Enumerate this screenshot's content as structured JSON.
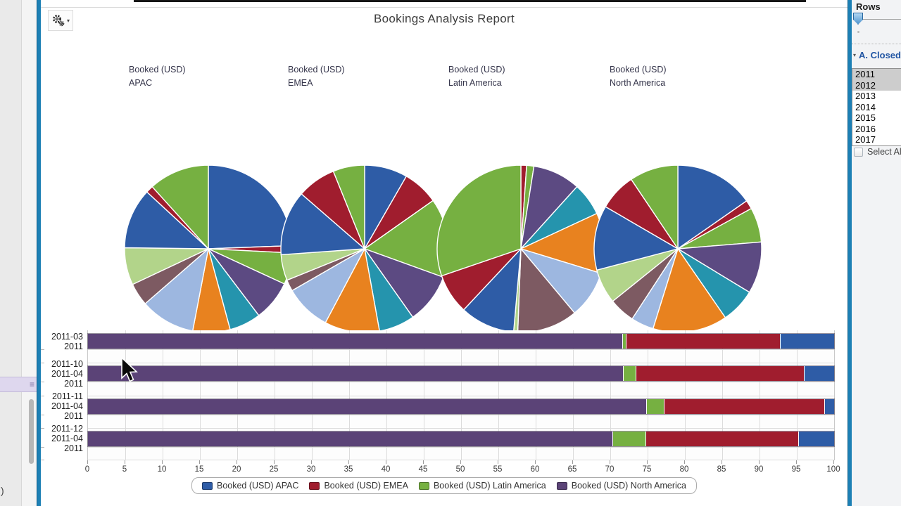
{
  "title": "Bookings Analysis Report",
  "toolbar": {
    "caret": "▾"
  },
  "left_panel": {
    "menu_icon": "≡",
    "overflow_text": ")"
  },
  "column_headers": [
    {
      "metric": "Booked (USD)",
      "region": "APAC"
    },
    {
      "metric": "Booked (USD)",
      "region": "EMEA"
    },
    {
      "metric": "Booked (USD)",
      "region": "Latin America"
    },
    {
      "metric": "Booked (USD)",
      "region": "North America"
    }
  ],
  "right_panel": {
    "rows_label": "Rows",
    "section": {
      "expander": "▾",
      "header": "A. Closed"
    },
    "years": [
      "2011",
      "2012",
      "2013",
      "2014",
      "2015",
      "2016",
      "2017"
    ],
    "selected_years": [
      "2011",
      "2012"
    ],
    "select_all_label": "Select All"
  },
  "legend": {
    "items": [
      {
        "label": "Booked (USD) APAC",
        "color": "#2E5CA6"
      },
      {
        "label": "Booked (USD) EMEA",
        "color": "#A01D2E"
      },
      {
        "label": "Booked (USD) Latin America",
        "color": "#76B041"
      },
      {
        "label": "Booked (USD) North America",
        "color": "#5B4377"
      }
    ]
  },
  "chart_data": [
    {
      "type": "pie",
      "title": "Booked (USD) APAC",
      "value_unit": "percent_of_pie",
      "slices": [
        {
          "color": "#2E5CA6",
          "value": 24.4
        },
        {
          "color": "#A01D2E",
          "value": 1.4
        },
        {
          "color": "#76B041",
          "value": 6.1
        },
        {
          "color": "#5C4A82",
          "value": 7.8
        },
        {
          "color": "#2594AD",
          "value": 6.1
        },
        {
          "color": "#E8821F",
          "value": 7.2
        },
        {
          "color": "#9DB7E0",
          "value": 10.6
        },
        {
          "color": "#7D5A62",
          "value": 4.4
        },
        {
          "color": "#B2D48A",
          "value": 7.2
        },
        {
          "color": "#2E5CA6",
          "value": 11.7
        },
        {
          "color": "#A01D2E",
          "value": 1.4
        },
        {
          "color": "#76B041",
          "value": 11.7
        }
      ]
    },
    {
      "type": "pie",
      "title": "Booked (USD) EMEA",
      "value_unit": "percent_of_pie",
      "slices": [
        {
          "color": "#2E5CA6",
          "value": 8.3
        },
        {
          "color": "#A01D2E",
          "value": 6.9
        },
        {
          "color": "#76B041",
          "value": 15.3
        },
        {
          "color": "#5C4A82",
          "value": 9.7
        },
        {
          "color": "#2594AD",
          "value": 6.9
        },
        {
          "color": "#E8821F",
          "value": 10.6
        },
        {
          "color": "#9DB7E0",
          "value": 8.9
        },
        {
          "color": "#7D5A62",
          "value": 2.2
        },
        {
          "color": "#B2D48A",
          "value": 5.0
        },
        {
          "color": "#2E5CA6",
          "value": 12.5
        },
        {
          "color": "#A01D2E",
          "value": 7.5
        },
        {
          "color": "#76B041",
          "value": 6.1
        }
      ]
    },
    {
      "type": "pie",
      "title": "Booked (USD) Latin America",
      "value_unit": "percent_of_pie",
      "slices": [
        {
          "color": "#A01D2E",
          "value": 1.1
        },
        {
          "color": "#76B041",
          "value": 1.4
        },
        {
          "color": "#5C4A82",
          "value": 9.2
        },
        {
          "color": "#2594AD",
          "value": 6.4
        },
        {
          "color": "#E8821F",
          "value": 11.7
        },
        {
          "color": "#9DB7E0",
          "value": 9.2
        },
        {
          "color": "#7D5A62",
          "value": 11.7
        },
        {
          "color": "#B2D48A",
          "value": 0.8
        },
        {
          "color": "#2E5CA6",
          "value": 10.6
        },
        {
          "color": "#A01D2E",
          "value": 7.8
        },
        {
          "color": "#76B041",
          "value": 30.3
        }
      ]
    },
    {
      "type": "pie",
      "title": "Booked (USD) North America",
      "value_unit": "percent_of_pie",
      "slices": [
        {
          "color": "#2E5CA6",
          "value": 15.3
        },
        {
          "color": "#A01D2E",
          "value": 1.7
        },
        {
          "color": "#76B041",
          "value": 6.7
        },
        {
          "color": "#5C4A82",
          "value": 10.0
        },
        {
          "color": "#2594AD",
          "value": 6.7
        },
        {
          "color": "#E8821F",
          "value": 14.4
        },
        {
          "color": "#9DB7E0",
          "value": 4.4
        },
        {
          "color": "#7D5A62",
          "value": 5.0
        },
        {
          "color": "#B2D48A",
          "value": 6.7
        },
        {
          "color": "#2E5CA6",
          "value": 12.5
        },
        {
          "color": "#A01D2E",
          "value": 7.2
        },
        {
          "color": "#76B041",
          "value": 9.4
        }
      ]
    },
    {
      "type": "bar",
      "orientation": "horizontal",
      "stacked": true,
      "grid": true,
      "categories": [
        [
          "2011-03",
          "2011"
        ],
        [
          "2011-10",
          "2011-04",
          "2011"
        ],
        [
          "2011-11",
          "2011-04",
          "2011"
        ],
        [
          "2011-12",
          "2011-04",
          "2011"
        ]
      ],
      "series": [
        {
          "name": "Booked (USD) North America",
          "color": "#5B4377",
          "values": [
            71.7,
            71.8,
            74.9,
            70.4
          ]
        },
        {
          "name": "Booked (USD) Latin America",
          "color": "#76B041",
          "values": [
            0.5,
            1.7,
            2.4,
            4.4
          ]
        },
        {
          "name": "Booked (USD) EMEA",
          "color": "#A01D2E",
          "values": [
            20.6,
            22.5,
            21.5,
            20.5
          ]
        },
        {
          "name": "Booked (USD) APAC",
          "color": "#2E5CA6",
          "values": [
            7.2,
            4.0,
            1.2,
            4.7
          ]
        }
      ],
      "xlim": [
        0,
        100
      ],
      "xticks_step": 5
    }
  ]
}
